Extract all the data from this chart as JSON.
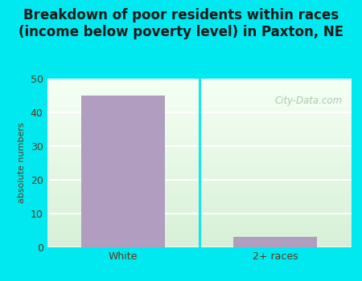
{
  "categories": [
    "White",
    "2+ races"
  ],
  "values": [
    45,
    3
  ],
  "bar_color": "#b09dc0",
  "title_line1": "Breakdown of poor residents within races",
  "title_line2": "(income below poverty level) in Paxton, NE",
  "ylabel": "absolute numbers",
  "ylim": [
    0,
    50
  ],
  "yticks": [
    0,
    10,
    20,
    30,
    40,
    50
  ],
  "background_outer": "#00e8f0",
  "plot_bg_top": "#f5fff5",
  "plot_bg_bottom": "#d8efd8",
  "watermark": "City-Data.com",
  "title_fontsize": 12,
  "ylabel_fontsize": 8,
  "tick_fontsize": 9,
  "bar_width": 0.55,
  "tick_color": "#5a3a1a",
  "watermark_color": "#a0bfa0",
  "grid_color": "#ffffff"
}
